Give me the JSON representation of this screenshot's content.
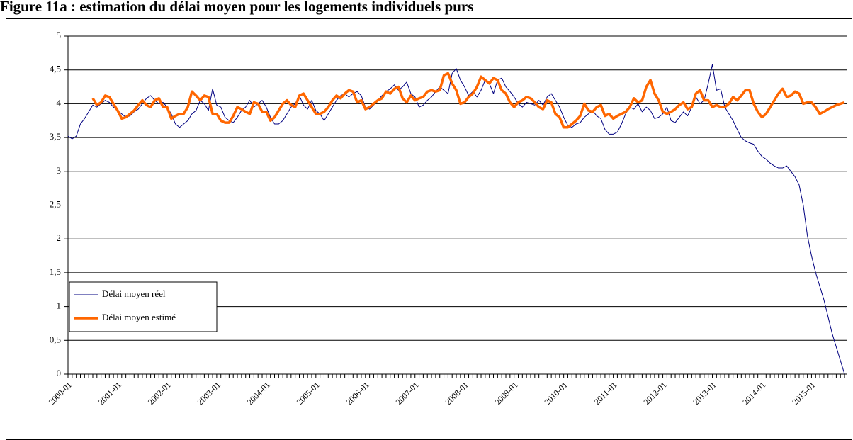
{
  "chart_data": {
    "type": "line",
    "title": "Figure 11a : estimation du délai moyen pour les logements individuels purs",
    "categories": [
      "2000-01",
      null,
      null,
      null,
      null,
      null,
      null,
      null,
      null,
      null,
      null,
      null,
      "2001-01",
      null,
      null,
      null,
      null,
      null,
      null,
      null,
      null,
      null,
      null,
      null,
      "2002-01",
      null,
      null,
      null,
      null,
      null,
      null,
      null,
      null,
      null,
      null,
      null,
      "2003-01",
      null,
      null,
      null,
      null,
      null,
      null,
      null,
      null,
      null,
      null,
      null,
      "2004-01",
      null,
      null,
      null,
      null,
      null,
      null,
      null,
      null,
      null,
      null,
      null,
      "2005-01",
      null,
      null,
      null,
      null,
      null,
      null,
      null,
      null,
      null,
      null,
      null,
      "2006-01",
      null,
      null,
      null,
      null,
      null,
      null,
      null,
      null,
      null,
      null,
      null,
      "2007-01",
      null,
      null,
      null,
      null,
      null,
      null,
      null,
      null,
      null,
      null,
      null,
      "2008-01",
      null,
      null,
      null,
      null,
      null,
      null,
      null,
      null,
      null,
      null,
      null,
      "2009-01",
      null,
      null,
      null,
      null,
      null,
      null,
      null,
      null,
      null,
      null,
      null,
      "2010-01",
      null,
      null,
      null,
      null,
      null,
      null,
      null,
      null,
      null,
      null,
      null,
      "2011-01",
      null,
      null,
      null,
      null,
      null,
      null,
      null,
      null,
      null,
      null,
      null,
      "2012-01",
      null,
      null,
      null,
      null,
      null,
      null,
      null,
      null,
      null,
      null,
      null,
      "2013-01",
      null,
      null,
      null,
      null,
      null,
      null,
      null,
      null,
      null,
      null,
      null,
      "2014-01",
      null,
      null,
      null,
      null,
      null,
      null,
      null,
      null,
      null,
      null,
      null,
      "2015-01",
      null,
      null,
      null,
      null,
      null,
      null,
      null,
      null
    ],
    "series": [
      {
        "name": "Délai moyen réel",
        "color": "#000080",
        "width": 1,
        "values": [
          3.52,
          3.48,
          3.52,
          3.7,
          3.78,
          3.88,
          3.98,
          3.95,
          4.0,
          4.05,
          4.02,
          3.95,
          3.9,
          3.85,
          3.8,
          3.82,
          3.88,
          3.92,
          4.0,
          4.08,
          4.12,
          4.05,
          4.0,
          4.02,
          3.95,
          3.85,
          3.7,
          3.65,
          3.7,
          3.75,
          3.85,
          3.9,
          4.05,
          4.0,
          3.9,
          4.22,
          3.98,
          3.95,
          3.8,
          3.75,
          3.72,
          3.8,
          3.9,
          3.95,
          4.05,
          3.95,
          4.0,
          4.05,
          3.95,
          3.8,
          3.7,
          3.7,
          3.75,
          3.85,
          3.95,
          4.0,
          4.12,
          3.98,
          3.92,
          4.05,
          3.9,
          3.85,
          3.75,
          3.85,
          3.95,
          4.05,
          4.12,
          4.15,
          4.1,
          4.15,
          4.18,
          4.12,
          3.95,
          3.92,
          3.98,
          4.05,
          4.12,
          4.18,
          4.22,
          4.28,
          4.2,
          4.25,
          4.32,
          4.15,
          4.1,
          3.95,
          3.98,
          4.05,
          4.1,
          4.18,
          4.25,
          4.2,
          4.15,
          4.45,
          4.52,
          4.35,
          4.25,
          4.12,
          4.18,
          4.1,
          4.2,
          4.35,
          4.3,
          4.15,
          4.35,
          4.38,
          4.25,
          4.18,
          4.1,
          4.0,
          3.95,
          4.02,
          4.0,
          3.98,
          4.05,
          3.98,
          4.1,
          4.15,
          4.05,
          3.95,
          3.8,
          3.68,
          3.65,
          3.7,
          3.72,
          3.8,
          3.85,
          3.9,
          3.82,
          3.78,
          3.62,
          3.55,
          3.55,
          3.58,
          3.7,
          3.85,
          3.95,
          3.92,
          4.0,
          3.88,
          3.95,
          3.9,
          3.78,
          3.8,
          3.85,
          3.95,
          3.75,
          3.72,
          3.8,
          3.88,
          3.82,
          3.95,
          4.1,
          4.0,
          4.05,
          4.3,
          4.58,
          4.2,
          4.22,
          3.95,
          3.85,
          3.75,
          3.62,
          3.5,
          3.45,
          3.42,
          3.4,
          3.3,
          3.22,
          3.18,
          3.12,
          3.08,
          3.05,
          3.05,
          3.08,
          3.0,
          2.92,
          2.8,
          2.5,
          2.05,
          1.75,
          1.5,
          1.3,
          1.1,
          0.85,
          0.6,
          0.4,
          0.2,
          0
        ]
      },
      {
        "name": "Délai moyen estimé",
        "color": "#ff6600",
        "width": 3.5,
        "values": [
          null,
          null,
          null,
          null,
          null,
          null,
          4.08,
          3.98,
          4.02,
          4.12,
          4.1,
          4.0,
          3.9,
          3.78,
          3.8,
          3.85,
          3.9,
          3.98,
          4.05,
          3.98,
          3.95,
          4.05,
          4.08,
          3.95,
          3.95,
          3.78,
          3.82,
          3.85,
          3.85,
          3.95,
          4.18,
          4.12,
          4.05,
          4.12,
          4.1,
          3.85,
          3.85,
          3.75,
          3.72,
          3.72,
          3.82,
          3.95,
          3.92,
          3.88,
          3.85,
          4.02,
          4.0,
          3.88,
          3.88,
          3.75,
          3.8,
          3.9,
          4.0,
          4.05,
          3.98,
          3.95,
          4.12,
          4.15,
          4.05,
          3.95,
          3.85,
          3.85,
          3.88,
          3.95,
          4.05,
          4.12,
          4.08,
          4.15,
          4.2,
          4.18,
          4.02,
          4.05,
          3.92,
          3.95,
          4.0,
          4.05,
          4.08,
          4.18,
          4.15,
          4.22,
          4.25,
          4.08,
          4.02,
          4.12,
          4.05,
          4.08,
          4.1,
          4.18,
          4.2,
          4.18,
          4.2,
          4.42,
          4.45,
          4.3,
          4.2,
          4.0,
          4.02,
          4.1,
          4.15,
          4.25,
          4.4,
          4.35,
          4.3,
          4.38,
          4.35,
          4.2,
          4.15,
          4.02,
          3.95,
          4.02,
          4.05,
          4.1,
          4.08,
          4.02,
          3.95,
          3.92,
          4.05,
          4.02,
          3.85,
          3.8,
          3.65,
          3.65,
          3.7,
          3.75,
          3.82,
          4.0,
          3.9,
          3.88,
          3.95,
          3.98,
          3.82,
          3.85,
          3.78,
          3.82,
          3.85,
          3.88,
          3.95,
          4.08,
          4.02,
          4.05,
          4.25,
          4.35,
          4.15,
          4.05,
          3.88,
          3.85,
          3.88,
          3.92,
          3.98,
          4.02,
          3.92,
          3.95,
          4.15,
          4.2,
          4.05,
          4.05,
          3.95,
          3.98,
          3.95,
          3.95,
          4.0,
          4.1,
          4.05,
          4.12,
          4.2,
          4.2,
          4.0,
          3.88,
          3.8,
          3.85,
          3.95,
          4.05,
          4.15,
          4.22,
          4.1,
          4.12,
          4.18,
          4.15,
          4.0,
          4.02,
          4.02,
          3.95,
          3.85,
          3.88,
          3.92,
          3.95,
          3.98,
          4.0,
          4.02
        ]
      }
    ],
    "ylim": [
      0,
      5
    ],
    "yticks": [
      0,
      {
        "value": 0.5,
        "label": "0,5"
      },
      1,
      {
        "value": 1.5,
        "label": "1,5"
      },
      2,
      {
        "value": 2.5,
        "label": "2,5"
      },
      3,
      {
        "value": 3.5,
        "label": "3,5"
      },
      4,
      {
        "value": 4.5,
        "label": "4,5"
      },
      5
    ],
    "grid": true,
    "legend": "lower-left"
  }
}
